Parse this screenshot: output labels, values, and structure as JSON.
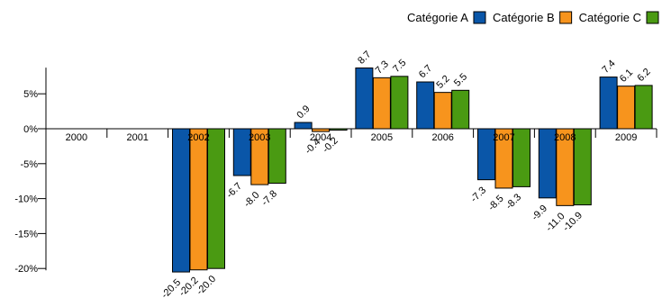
{
  "chart_data": {
    "type": "bar",
    "categories": [
      "2000",
      "2001",
      "2002",
      "2003",
      "2004",
      "2005",
      "2006",
      "2007",
      "2008",
      "2009"
    ],
    "series": [
      {
        "name": "Catégorie A",
        "color": "#0a56a8",
        "values": [
          null,
          null,
          -20.5,
          -6.7,
          0.9,
          8.7,
          6.7,
          -7.3,
          -9.9,
          7.4
        ]
      },
      {
        "name": "Catégorie B",
        "color": "#f7941d",
        "values": [
          null,
          null,
          -20.2,
          -8.0,
          -0.4,
          7.3,
          5.2,
          -8.5,
          -11.0,
          6.1
        ]
      },
      {
        "name": "Catégorie C",
        "color": "#4a9a12",
        "values": [
          null,
          null,
          -20.0,
          -7.8,
          -0.2,
          7.5,
          5.5,
          -8.3,
          -10.9,
          6.2
        ]
      }
    ],
    "y_ticks": [
      "5%",
      "0%",
      "-5%",
      "-10%",
      "-15%",
      "-20%"
    ],
    "y_tick_values": [
      5,
      0,
      -5,
      -10,
      -15,
      -20
    ],
    "ylim": [
      -21,
      9
    ],
    "legend_position": "top-right",
    "grid": false
  }
}
